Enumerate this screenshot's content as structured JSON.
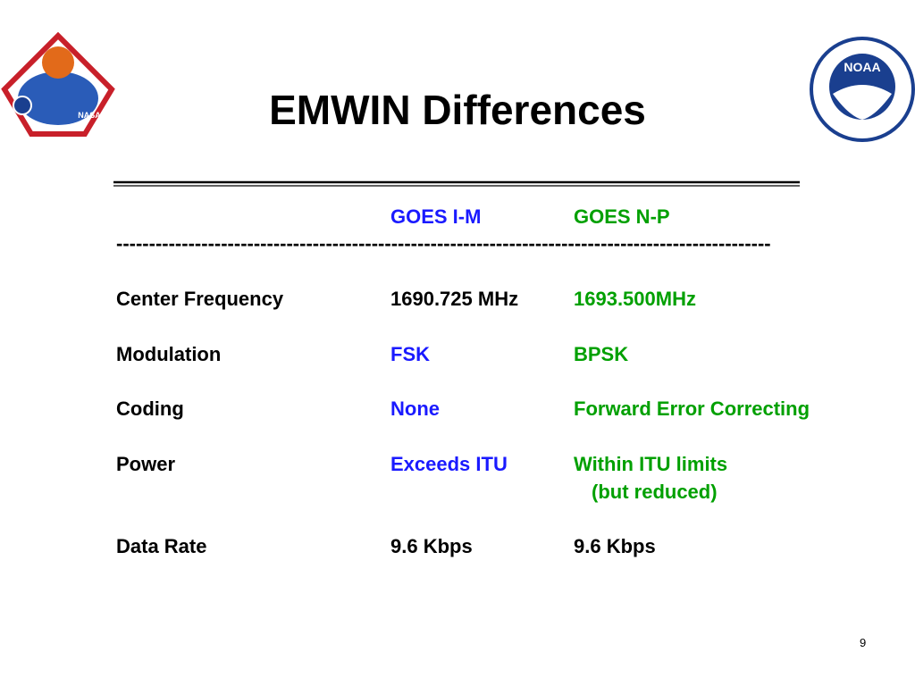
{
  "title": "EMWIN Differences",
  "logos": {
    "left": "NASA",
    "right": "NOAA"
  },
  "table": {
    "header": [
      "GOES I-M",
      "GOES N-P"
    ],
    "separator": "----------------------------------------------------------------------------------------------------",
    "rows": [
      [
        [
          "Center Frequency"
        ],
        [
          "1690.725 MHz"
        ],
        [
          "1693.500MHz"
        ]
      ],
      [
        [
          "Modulation"
        ],
        [
          "FSK"
        ],
        [
          "BPSK"
        ]
      ],
      [
        [
          "Coding"
        ],
        [
          "None"
        ],
        [
          "Forward Error Correcting"
        ]
      ],
      [
        [
          "Power"
        ],
        [
          "Exceeds ITU"
        ],
        [
          "Within ITU limits",
          "(but reduced)"
        ]
      ],
      [
        [
          "Data Rate"
        ],
        [
          "9.6 Kbps"
        ],
        [
          "9.6 Kbps"
        ]
      ]
    ]
  },
  "page_number": "9"
}
